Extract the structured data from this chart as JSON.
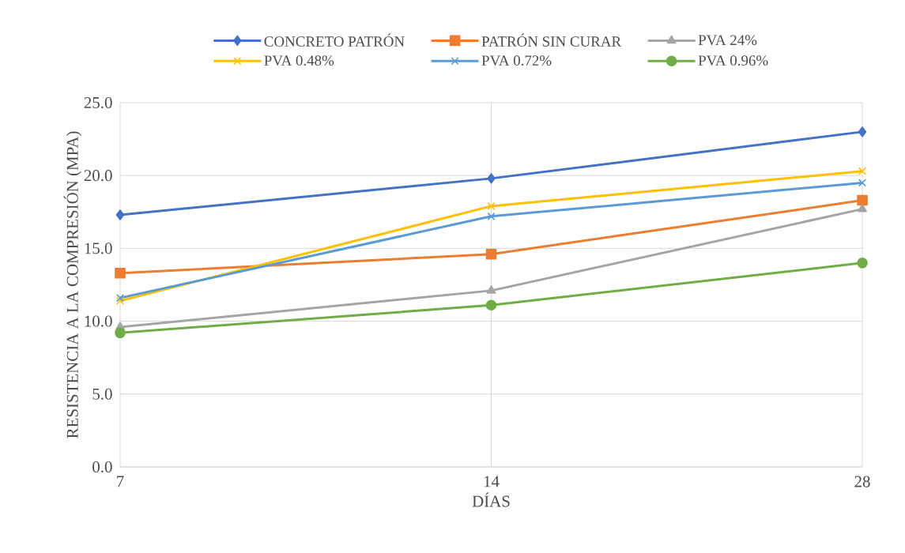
{
  "chart_data": {
    "type": "line",
    "xlabel": "DÍAS",
    "ylabel": "RESISTENCIA A LA COMPRESIÓN (MPA)",
    "categories": [
      "7",
      "14",
      "28"
    ],
    "series": [
      {
        "name": "CONCRETO PATRÓN",
        "color": "#4472c4",
        "marker": "diamond",
        "values": [
          17.3,
          19.8,
          23.0
        ]
      },
      {
        "name": "PATRÓN SIN CURAR",
        "color": "#ed7d31",
        "marker": "square",
        "values": [
          13.3,
          14.6,
          18.3
        ]
      },
      {
        "name": "PVA 24%",
        "color": "#a5a5a5",
        "marker": "triangle",
        "values": [
          9.6,
          12.1,
          17.7
        ]
      },
      {
        "name": "PVA 0.48%",
        "color": "#ffc000",
        "marker": "cross",
        "values": [
          11.4,
          17.9,
          20.3
        ]
      },
      {
        "name": "PVA 0.72%",
        "color": "#5b9bd5",
        "marker": "cross",
        "values": [
          11.6,
          17.2,
          19.5
        ]
      },
      {
        "name": "PVA 0.96%",
        "color": "#70ad47",
        "marker": "circle",
        "values": [
          9.2,
          11.1,
          14.0
        ]
      }
    ],
    "ylim": [
      0,
      25
    ],
    "yticks": [
      {
        "value": 0,
        "label": "0.0"
      },
      {
        "value": 5,
        "label": "5.0"
      },
      {
        "value": 10,
        "label": "10.0"
      },
      {
        "value": 15,
        "label": "15.0"
      },
      {
        "value": 20,
        "label": "20.0"
      },
      {
        "value": 25,
        "label": "25.0"
      }
    ],
    "grid": true,
    "legend": "top",
    "line_style": "solid"
  }
}
